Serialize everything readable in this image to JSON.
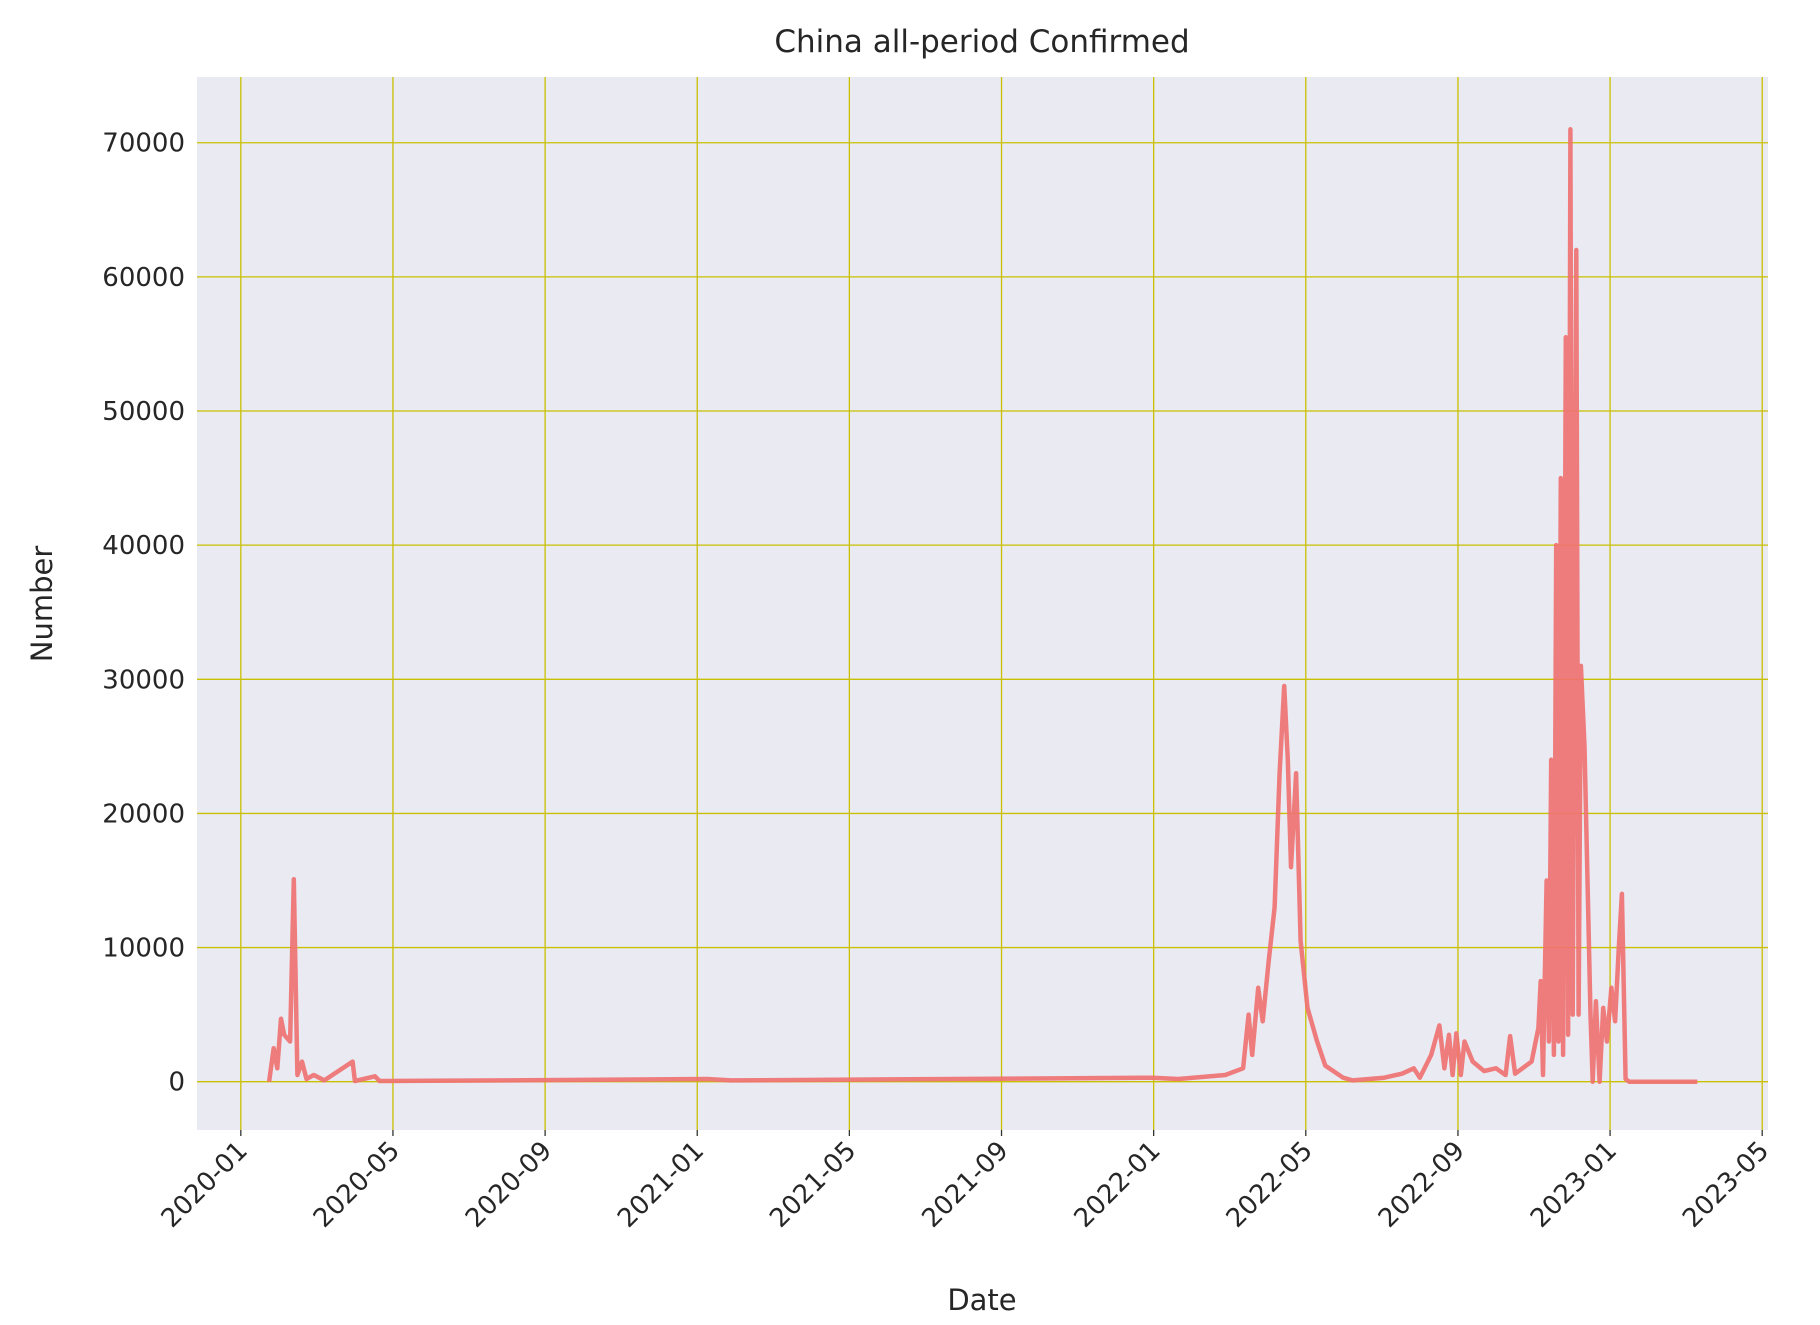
{
  "chart_data": {
    "type": "line",
    "title": "China all-period Confirmed",
    "xlabel": "Date",
    "ylabel": "Number",
    "x": [
      2020.062,
      2020.072,
      2020.08,
      2020.088,
      2020.095,
      2020.108,
      2020.116,
      2020.124,
      2020.134,
      2020.144,
      2020.16,
      2020.183,
      2020.245,
      2020.25,
      2020.294,
      2020.304,
      2020.583,
      2021.022,
      2021.073,
      2021.997,
      2022.054,
      2022.157,
      2022.196,
      2022.208,
      2022.216,
      2022.229,
      2022.239,
      2022.252,
      2022.265,
      2022.276,
      2022.286,
      2022.294,
      2022.301,
      2022.312,
      2022.322,
      2022.337,
      2022.358,
      2022.376,
      2022.415,
      2022.436,
      2022.505,
      2022.544,
      2022.57,
      2022.583,
      2022.608,
      2022.626,
      2022.637,
      2022.647,
      2022.655,
      2022.663,
      2022.673,
      2022.681,
      2022.699,
      2022.724,
      2022.75,
      2022.771,
      2022.781,
      2022.792,
      2022.828,
      2022.843,
      2022.848,
      2022.853,
      2022.861,
      2022.866,
      2022.871,
      2022.877,
      2022.882,
      2022.887,
      2022.892,
      2022.897,
      2022.903,
      2022.908,
      2022.913,
      2022.918,
      2022.926,
      2022.931,
      2022.936,
      2022.944,
      2022.957,
      2022.962,
      2022.969,
      2022.977,
      2022.985,
      2022.993,
      2023.003,
      2023.011,
      2023.019,
      2023.026,
      2023.034,
      2023.042,
      2023.191
    ],
    "values": [
      0,
      2500,
      1000,
      4700,
      3500,
      3000,
      15100,
      500,
      1500,
      200,
      500,
      100,
      1500,
      50,
      400,
      50,
      100,
      200,
      100,
      300,
      200,
      500,
      1000,
      5000,
      2000,
      7000,
      4500,
      9000,
      13000,
      23000,
      29500,
      24000,
      16000,
      23000,
      10500,
      5500,
      3000,
      1200,
      300,
      100,
      300,
      600,
      1000,
      300,
      2000,
      4200,
      1000,
      3500,
      500,
      3600,
      500,
      3000,
      1500,
      800,
      1000,
      500,
      3400,
      600,
      1500,
      4000,
      7500,
      500,
      15000,
      3000,
      24000,
      2000,
      40000,
      3000,
      45000,
      2000,
      55500,
      3500,
      71000,
      5000,
      62000,
      5000,
      31000,
      25000,
      5000,
      0,
      6000,
      0,
      5500,
      3000,
      7000,
      4500,
      10000,
      14000,
      200,
      0,
      0
    ],
    "color": "#f07070",
    "xlim": [
      2019.904,
      2023.346
    ],
    "xticks": [
      {
        "value": 2020.0,
        "label": "2020-01"
      },
      {
        "value": 2020.3333,
        "label": "2020-05"
      },
      {
        "value": 2020.6667,
        "label": "2020-09"
      },
      {
        "value": 2021.0,
        "label": "2021-01"
      },
      {
        "value": 2021.3333,
        "label": "2021-05"
      },
      {
        "value": 2021.6667,
        "label": "2021-09"
      },
      {
        "value": 2022.0,
        "label": "2022-01"
      },
      {
        "value": 2022.3333,
        "label": "2022-05"
      },
      {
        "value": 2022.6667,
        "label": "2022-09"
      },
      {
        "value": 2023.0,
        "label": "2023-01"
      },
      {
        "value": 2023.3333,
        "label": "2023-05"
      }
    ],
    "ylim": [
      -3600,
      74900
    ],
    "yticks": [
      0,
      10000,
      20000,
      30000,
      40000,
      50000,
      60000,
      70000
    ],
    "grid": true,
    "grid_color": "#c8c000",
    "background": "#eaeaf2"
  }
}
